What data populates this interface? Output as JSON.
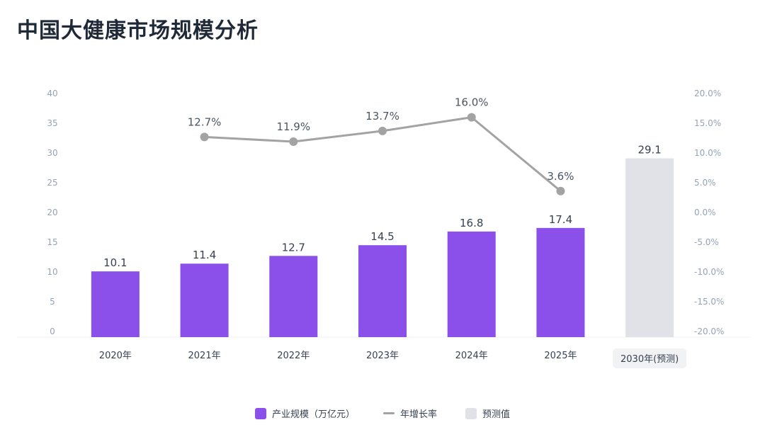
{
  "title": "中国大健康市场规模分析",
  "colors": {
    "bar": "#8b4fea",
    "forecast_bar": "#e0e2e7",
    "line": "#a3a3a3",
    "grid": "#eef0f3"
  },
  "chart_data": {
    "type": "bar",
    "categories": [
      "2020年",
      "2021年",
      "2022年",
      "2023年",
      "2024年",
      "2025年",
      "2030年(预测)"
    ],
    "series": [
      {
        "name": "产业规模（万亿元）",
        "type": "bar",
        "axis": "left",
        "values": [
          10.1,
          11.4,
          12.7,
          14.5,
          16.8,
          17.4,
          null
        ]
      },
      {
        "name": "年增长率",
        "type": "line",
        "axis": "right",
        "values": [
          null,
          12.7,
          11.9,
          13.7,
          16.0,
          3.6,
          null
        ],
        "labels": [
          null,
          "12.7%",
          "11.9%",
          "13.7%",
          "16.0%",
          "3.6%",
          null
        ]
      },
      {
        "name": "预测值",
        "type": "bar",
        "axis": "left",
        "values": [
          null,
          null,
          null,
          null,
          null,
          null,
          29.1
        ]
      }
    ],
    "bar_labels": [
      "10.1",
      "11.4",
      "12.7",
      "14.5",
      "16.8",
      "17.4",
      "29.1"
    ],
    "y_left": {
      "range": [
        0,
        40
      ],
      "ticks": [
        "0",
        "5",
        "10",
        "15",
        "20",
        "25",
        "30",
        "35",
        "40"
      ]
    },
    "y_right": {
      "range": [
        -20,
        20
      ],
      "ticks": [
        "-20.0%",
        "-15.0%",
        "-10.0%",
        "-5.0%",
        "0.0%",
        "5.0%",
        "10.0%",
        "15.0%",
        "20.0%"
      ]
    },
    "legend": [
      {
        "label": "产业规模（万亿元）",
        "kind": "bar",
        "color": "#8b4fea"
      },
      {
        "label": "年增长率",
        "kind": "line",
        "color": "#a3a3a3"
      },
      {
        "label": "预测值",
        "kind": "bar",
        "color": "#e0e2e7"
      }
    ],
    "legend_position": "bottom"
  }
}
